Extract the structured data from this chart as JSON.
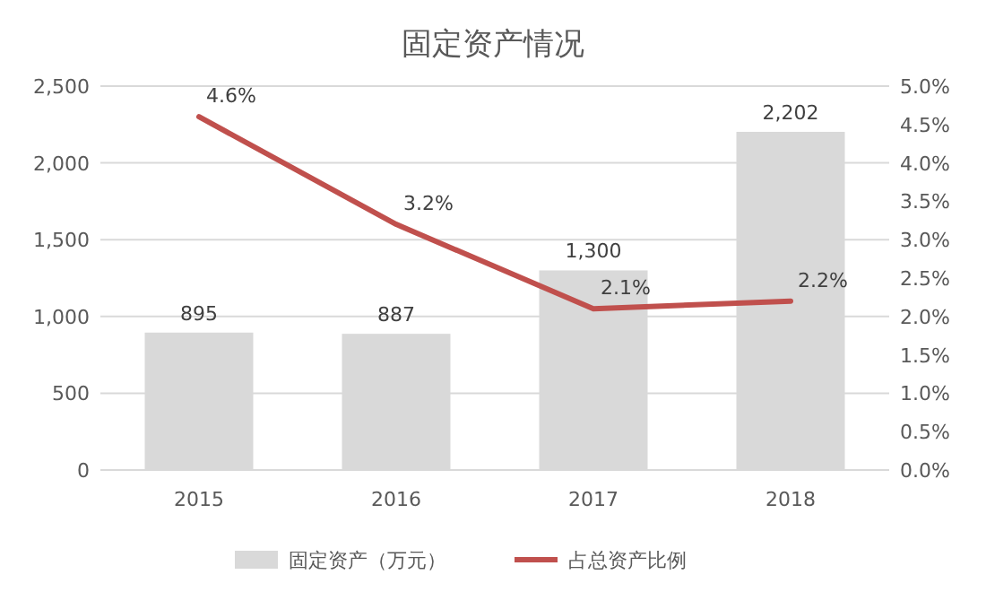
{
  "chart_data": {
    "type": "bar",
    "title": "固定资产情况",
    "categories": [
      "2015",
      "2016",
      "2017",
      "2018"
    ],
    "series": [
      {
        "name": "固定资产（万元）",
        "color": "#d9d9d9",
        "values": [
          895,
          887,
          1300,
          2202
        ],
        "value_labels": [
          "895",
          "887",
          "1,300",
          "2,202"
        ]
      },
      {
        "name": "占总资产比例",
        "type": "line",
        "axis": "y2",
        "color": "#c0504d",
        "values": [
          4.6,
          3.2,
          2.1,
          2.2
        ],
        "value_labels": [
          "4.6%",
          "3.2%",
          "2.1%",
          "2.2%"
        ]
      }
    ],
    "ylim": [
      0,
      2500
    ],
    "yticks": [
      {
        "value": 0,
        "label": "0"
      },
      {
        "value": 500,
        "label": "500"
      },
      {
        "value": 1000,
        "label": "1,000"
      },
      {
        "value": 1500,
        "label": "1,500"
      },
      {
        "value": 2000,
        "label": "2,000"
      },
      {
        "value": 2500,
        "label": "2,500"
      }
    ],
    "y2lim": [
      0,
      5
    ],
    "y2ticks": [
      {
        "value": 0,
        "label": "0.0%"
      },
      {
        "value": 0.5,
        "label": "0.5%"
      },
      {
        "value": 1,
        "label": "1.0%"
      },
      {
        "value": 1.5,
        "label": "1.5%"
      },
      {
        "value": 2,
        "label": "2.0%"
      },
      {
        "value": 2.5,
        "label": "2.5%"
      },
      {
        "value": 3,
        "label": "3.0%"
      },
      {
        "value": 3.5,
        "label": "3.5%"
      },
      {
        "value": 4,
        "label": "4.0%"
      },
      {
        "value": 4.5,
        "label": "4.5%"
      },
      {
        "value": 5,
        "label": "5.0%"
      }
    ],
    "grid": "y",
    "legend": "bottom"
  }
}
